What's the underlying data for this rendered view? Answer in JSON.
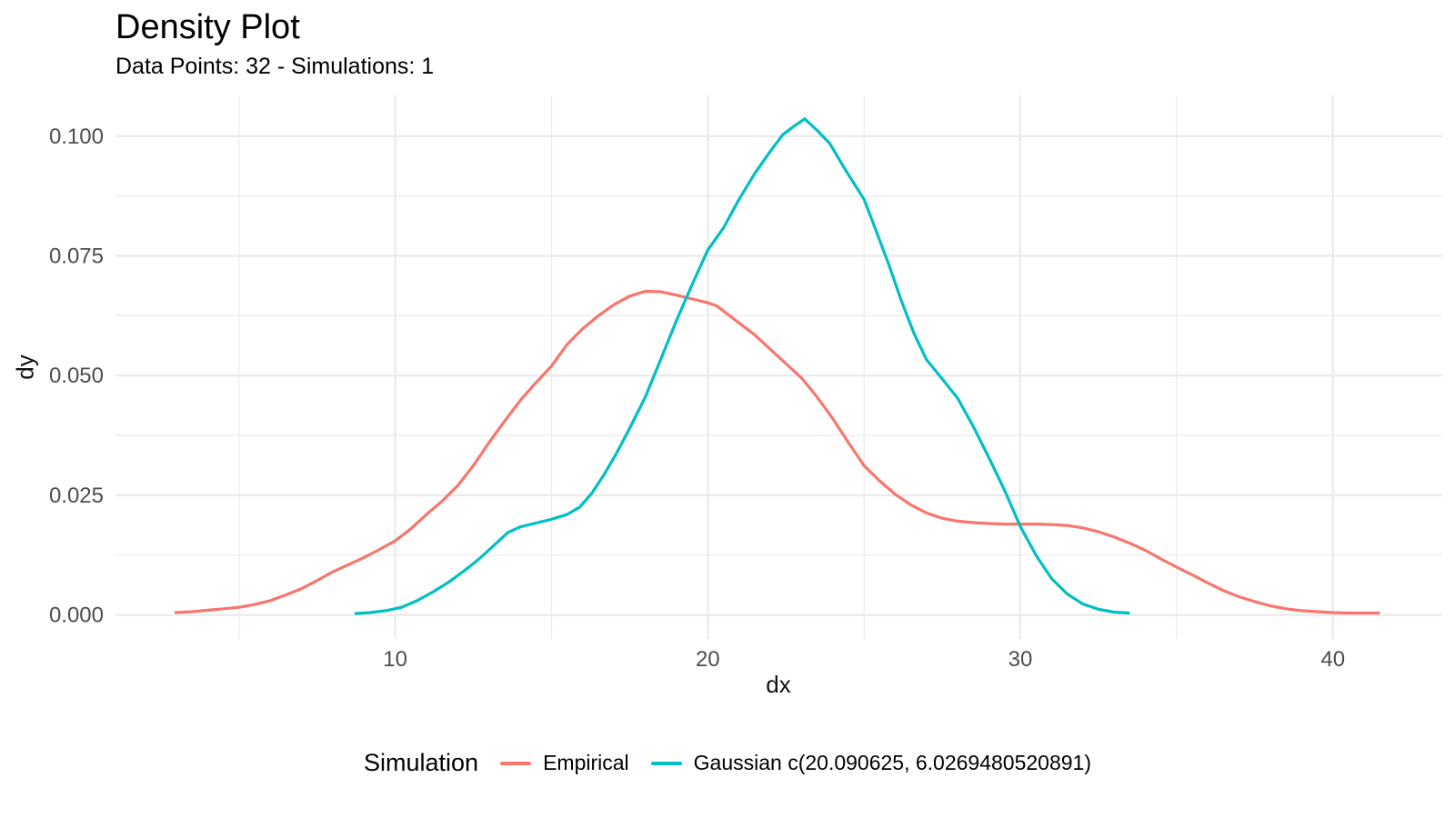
{
  "chart_data": {
    "type": "line",
    "title": "Density Plot",
    "subtitle": "Data Points: 32 - Simulations: 1",
    "xlabel": "dx",
    "ylabel": "dy",
    "xlim": [
      1.05,
      43.5
    ],
    "ylim": [
      -0.005,
      0.1085
    ],
    "x_major_ticks": [
      10,
      20,
      30,
      40
    ],
    "x_minor_ticks": [
      5,
      15,
      25,
      35
    ],
    "y_major_ticks": [
      0,
      0.025,
      0.05,
      0.075,
      0.1
    ],
    "y_tick_labels": [
      "0.000",
      "0.025",
      "0.050",
      "0.075",
      "0.100"
    ],
    "y_minor_ticks": [
      0.0125,
      0.0375,
      0.0625,
      0.0875
    ],
    "grid": true,
    "legend_position": "bottom",
    "legend_title": "Simulation",
    "colors": {
      "grid": "#EBEBEB",
      "tick_text": "#4D4D4D",
      "text": "#000000",
      "background": "#FFFFFF",
      "empirical": "#F8766D",
      "gaussian": "#00BFC4"
    },
    "series": [
      {
        "name": "Empirical",
        "color": "#F8766D",
        "points": [
          [
            2.94,
            0.0005
          ],
          [
            3.5,
            0.0007
          ],
          [
            4,
            0.001
          ],
          [
            4.5,
            0.0013
          ],
          [
            5,
            0.0016
          ],
          [
            5.5,
            0.0022
          ],
          [
            6,
            0.003
          ],
          [
            6.5,
            0.0042
          ],
          [
            7,
            0.0055
          ],
          [
            7.5,
            0.0072
          ],
          [
            8,
            0.009
          ],
          [
            8.5,
            0.0105
          ],
          [
            9,
            0.012
          ],
          [
            9.5,
            0.0137
          ],
          [
            10,
            0.0155
          ],
          [
            10.5,
            0.018
          ],
          [
            11,
            0.021
          ],
          [
            11.5,
            0.0238
          ],
          [
            12,
            0.027
          ],
          [
            12.5,
            0.0312
          ],
          [
            13,
            0.036
          ],
          [
            13.5,
            0.0405
          ],
          [
            14,
            0.0448
          ],
          [
            14.5,
            0.0485
          ],
          [
            15,
            0.052
          ],
          [
            15.5,
            0.0565
          ],
          [
            16,
            0.0598
          ],
          [
            16.5,
            0.0625
          ],
          [
            17,
            0.0648
          ],
          [
            17.5,
            0.0666
          ],
          [
            18,
            0.0676
          ],
          [
            18.5,
            0.0675
          ],
          [
            19,
            0.0668
          ],
          [
            19.5,
            0.066
          ],
          [
            20,
            0.0652
          ],
          [
            20.3,
            0.0645
          ],
          [
            21,
            0.061
          ],
          [
            21.5,
            0.0585
          ],
          [
            22,
            0.0555
          ],
          [
            22.5,
            0.0525
          ],
          [
            23,
            0.0495
          ],
          [
            23.5,
            0.0455
          ],
          [
            24,
            0.041
          ],
          [
            24.5,
            0.036
          ],
          [
            25,
            0.0312
          ],
          [
            25.5,
            0.028
          ],
          [
            26,
            0.0252
          ],
          [
            26.5,
            0.023
          ],
          [
            27,
            0.0213
          ],
          [
            27.5,
            0.0202
          ],
          [
            28,
            0.0196
          ],
          [
            28.5,
            0.0193
          ],
          [
            29,
            0.0191
          ],
          [
            29.5,
            0.019
          ],
          [
            30,
            0.019
          ],
          [
            30.5,
            0.019
          ],
          [
            31,
            0.0189
          ],
          [
            31.5,
            0.0187
          ],
          [
            32,
            0.0182
          ],
          [
            32.5,
            0.0174
          ],
          [
            33,
            0.0163
          ],
          [
            33.5,
            0.015
          ],
          [
            34,
            0.0135
          ],
          [
            34.5,
            0.0117
          ],
          [
            35,
            0.01
          ],
          [
            35.5,
            0.0084
          ],
          [
            36,
            0.0067
          ],
          [
            36.5,
            0.0051
          ],
          [
            37,
            0.0038
          ],
          [
            37.5,
            0.0028
          ],
          [
            38,
            0.0019
          ],
          [
            38.5,
            0.0013
          ],
          [
            39,
            0.0009
          ],
          [
            39.5,
            0.0007
          ],
          [
            40,
            0.0005
          ],
          [
            40.5,
            0.0004
          ],
          [
            41,
            0.0004
          ],
          [
            41.5,
            0.0004
          ]
        ]
      },
      {
        "name": "Gaussian c(20.090625, 6.0269480520891)",
        "color": "#00BFC4",
        "points": [
          [
            8.7,
            0.0003
          ],
          [
            9.2,
            0.0005
          ],
          [
            9.7,
            0.0009
          ],
          [
            10.2,
            0.0016
          ],
          [
            10.7,
            0.003
          ],
          [
            11.2,
            0.0048
          ],
          [
            11.7,
            0.0068
          ],
          [
            12.2,
            0.0092
          ],
          [
            12.7,
            0.0118
          ],
          [
            13.2,
            0.0148
          ],
          [
            13.6,
            0.0172
          ],
          [
            14,
            0.0184
          ],
          [
            14.5,
            0.0192
          ],
          [
            15,
            0.02
          ],
          [
            15.5,
            0.021
          ],
          [
            15.9,
            0.0225
          ],
          [
            16.3,
            0.0255
          ],
          [
            16.7,
            0.0295
          ],
          [
            17.1,
            0.034
          ],
          [
            17.5,
            0.039
          ],
          [
            18,
            0.0455
          ],
          [
            18.5,
            0.0535
          ],
          [
            19,
            0.0615
          ],
          [
            19.5,
            0.069
          ],
          [
            20,
            0.0762
          ],
          [
            20.5,
            0.0808
          ],
          [
            21,
            0.0868
          ],
          [
            21.5,
            0.0922
          ],
          [
            22,
            0.0968
          ],
          [
            22.4,
            0.1003
          ],
          [
            22.7,
            0.1018
          ],
          [
            23.1,
            0.1036
          ],
          [
            23.5,
            0.1012
          ],
          [
            23.9,
            0.0985
          ],
          [
            24.4,
            0.093
          ],
          [
            25,
            0.0868
          ],
          [
            25.4,
            0.08
          ],
          [
            25.8,
            0.073
          ],
          [
            26.2,
            0.0655
          ],
          [
            26.6,
            0.0588
          ],
          [
            27,
            0.0533
          ],
          [
            27.5,
            0.0493
          ],
          [
            28,
            0.0452
          ],
          [
            28.5,
            0.0393
          ],
          [
            29,
            0.0328
          ],
          [
            29.5,
            0.026
          ],
          [
            30,
            0.0185
          ],
          [
            30.5,
            0.0125
          ],
          [
            31,
            0.0076
          ],
          [
            31.5,
            0.0044
          ],
          [
            32,
            0.0023
          ],
          [
            32.5,
            0.0012
          ],
          [
            33,
            0.0006
          ],
          [
            33.5,
            0.0004
          ]
        ]
      }
    ]
  }
}
